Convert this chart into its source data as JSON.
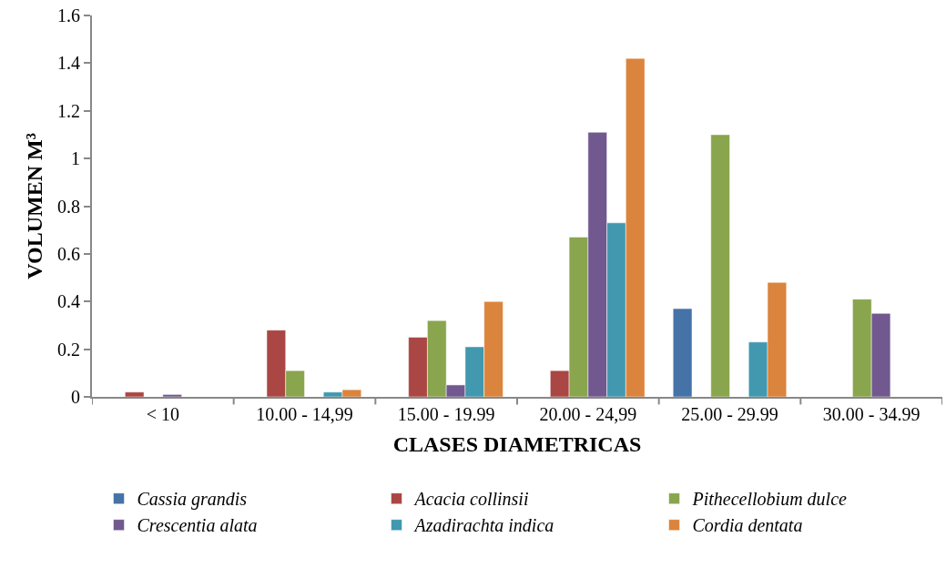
{
  "chart_data": {
    "type": "bar",
    "xlabel": "CLASES DIAMETRICAS",
    "ylabel": "VOLUMEN M³",
    "categories": [
      "< 10",
      "10.00 - 14,99",
      "15.00 - 19.99",
      "20.00 - 24,99",
      "25.00 - 29.99",
      "30.00 - 34.99"
    ],
    "series": [
      {
        "name": "Cassia grandis",
        "color": "#4572a7",
        "values": [
          null,
          null,
          null,
          null,
          0.37,
          null
        ]
      },
      {
        "name": "Acacia collinsii",
        "color": "#aa4643",
        "values": [
          0.02,
          0.28,
          0.25,
          0.11,
          null,
          null
        ]
      },
      {
        "name": "Pithecellobium dulce",
        "color": "#89a54e",
        "values": [
          null,
          0.11,
          0.32,
          0.67,
          1.1,
          0.41
        ]
      },
      {
        "name": "Crescentia alata",
        "color": "#71588f",
        "values": [
          0.01,
          null,
          0.05,
          1.11,
          null,
          0.35
        ]
      },
      {
        "name": "Azadirachta indica",
        "color": "#4198af",
        "values": [
          null,
          0.02,
          0.21,
          0.73,
          0.23,
          null
        ]
      },
      {
        "name": "Cordia dentata",
        "color": "#db843d",
        "values": [
          null,
          0.03,
          0.4,
          1.42,
          0.48,
          null
        ]
      }
    ],
    "ylim": [
      0,
      1.6
    ],
    "yticks": [
      0,
      0.2,
      0.4,
      0.6,
      0.8,
      1,
      1.2,
      1.4,
      1.6
    ],
    "grid": false,
    "legend": "bottom"
  }
}
